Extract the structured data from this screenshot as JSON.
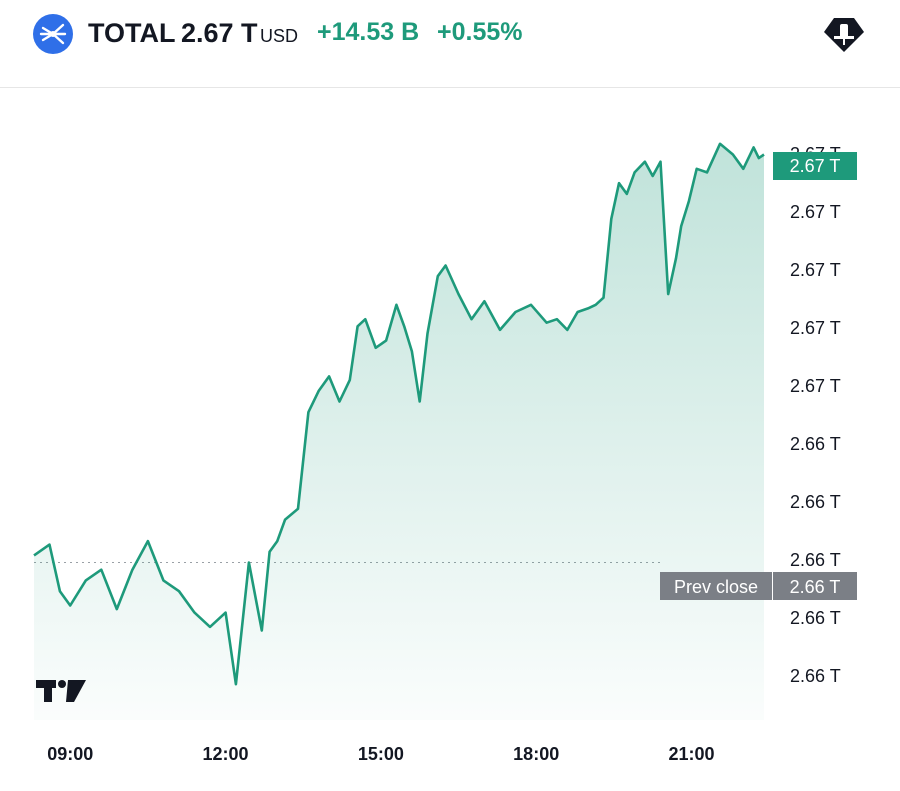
{
  "header": {
    "ticker": "TOTAL",
    "price": "2.67 T",
    "currency": "USD",
    "change": "+14.53 B",
    "change_pct": "+0.55%"
  },
  "colors": {
    "line": "#1e9a7b",
    "price_badge": "#1e9a7b",
    "prev_close_badge": "#7b7f86",
    "logo": "#2f6fe8"
  },
  "icons": {
    "logo": "total-crypto-logo-icon",
    "alert": "alert-pin-icon",
    "watermark": "tradingview-logo-icon"
  },
  "chart_data": {
    "type": "line",
    "y_ticks": [
      "2.67 T",
      "2.67 T",
      "2.67 T",
      "2.67 T",
      "2.67 T",
      "2.66 T",
      "2.66 T",
      "2.66 T",
      "2.66 T",
      "2.66 T"
    ],
    "x_ticks": [
      "09:00",
      "12:00",
      "15:00",
      "18:00",
      "21:00"
    ],
    "current_label": "2.67 T",
    "prev_close_label": "Prev close",
    "prev_close_value": "2.66 T",
    "grid": false,
    "x_range": [
      8.3,
      22.4
    ],
    "series": [
      {
        "x": [
          8.3,
          8.6,
          8.8,
          9.0,
          9.3,
          9.6,
          9.9,
          10.2,
          10.5,
          10.8,
          11.1,
          11.4,
          11.7,
          12.0,
          12.2,
          12.45,
          12.7,
          12.85,
          13.0,
          13.15,
          13.4,
          13.6,
          13.8,
          14.0,
          14.2,
          14.4,
          14.55,
          14.7,
          14.9,
          15.1,
          15.3,
          15.45,
          15.6,
          15.75,
          15.9,
          16.1,
          16.25,
          16.5,
          16.75,
          17.0,
          17.3,
          17.6,
          17.9,
          18.2,
          18.4,
          18.6,
          18.8,
          19.0,
          19.15,
          19.3,
          19.45,
          19.6,
          19.75,
          19.9,
          20.1,
          20.25,
          20.4,
          20.55,
          20.7,
          20.8,
          20.95,
          21.1,
          21.3,
          21.55,
          21.8,
          22.0,
          22.2,
          22.3,
          22.4
        ],
        "y": [
          2.6618,
          2.6621,
          2.6608,
          2.6604,
          2.6611,
          2.6614,
          2.6603,
          2.6614,
          2.6622,
          2.6611,
          2.6608,
          2.6602,
          2.6598,
          2.6602,
          2.6582,
          2.6616,
          2.6597,
          2.6619,
          2.6622,
          2.6628,
          2.6631,
          2.6658,
          2.6664,
          2.6668,
          2.6661,
          2.6667,
          2.6682,
          2.6684,
          2.6676,
          2.6678,
          2.6688,
          2.6682,
          2.6675,
          2.6661,
          2.668,
          2.6696,
          2.6699,
          2.6691,
          2.6684,
          2.6689,
          2.6681,
          2.6686,
          2.6688,
          2.6683,
          2.6684,
          2.6681,
          2.6686,
          2.6687,
          2.6688,
          2.669,
          2.6712,
          2.6722,
          2.6719,
          2.6725,
          2.6728,
          2.6724,
          2.6728,
          2.6691,
          2.6701,
          2.671,
          2.6717,
          2.6726,
          2.6725,
          2.6733,
          2.673,
          2.6726,
          2.6732,
          2.6729,
          2.673
        ]
      }
    ],
    "y_value_range": [
      2.6572,
      2.6743
    ],
    "prev_close_y": 2.6616
  }
}
